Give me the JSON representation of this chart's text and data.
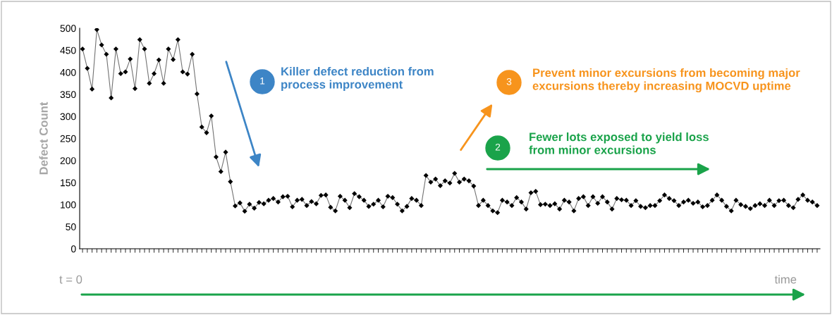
{
  "chart_data": {
    "type": "line",
    "ylabel": "Defect Count",
    "categories": [
      null,
      null,
      null,
      null,
      null,
      null,
      null,
      null,
      null,
      null,
      null,
      null,
      null,
      null,
      null,
      null,
      null,
      null,
      null,
      null,
      null,
      null,
      null,
      null,
      null,
      null,
      null,
      null,
      null,
      null,
      null,
      null,
      null,
      null,
      null,
      null,
      null,
      null,
      null,
      null,
      null,
      null,
      null,
      null,
      null,
      null,
      null,
      null,
      null,
      null,
      null,
      null,
      null,
      null,
      null,
      null,
      null,
      null,
      null,
      null,
      null,
      null,
      null,
      null,
      null,
      null,
      null,
      null,
      null,
      null,
      null,
      null,
      null,
      null,
      null,
      null,
      null,
      null,
      null,
      null,
      null,
      null,
      null,
      null,
      null,
      null,
      null,
      null,
      null,
      null,
      null,
      null,
      null,
      null,
      null,
      null,
      null,
      null,
      null,
      null,
      null,
      null,
      null,
      null,
      null,
      null,
      null,
      null,
      null,
      null,
      null,
      null,
      null,
      null,
      null,
      null,
      null,
      null,
      null,
      null,
      null,
      null,
      null,
      null,
      null,
      null,
      null,
      null,
      null,
      null,
      null,
      null,
      null,
      null,
      null,
      null,
      null,
      null,
      null,
      null,
      null,
      null,
      null,
      null,
      null,
      null,
      null,
      null,
      null,
      null,
      null,
      null,
      null,
      null,
      null
    ],
    "series": [
      {
        "color": "#000000",
        "values": [
          453,
          409,
          362,
          497,
          462,
          441,
          342,
          453,
          397,
          401,
          430,
          363,
          474,
          453,
          375,
          397,
          428,
          375,
          453,
          429,
          474,
          401,
          396,
          441,
          351,
          276,
          263,
          301,
          208,
          175,
          219,
          152,
          97,
          104,
          85,
          101,
          92,
          105,
          102,
          110,
          114,
          106,
          118,
          119,
          95,
          110,
          112,
          98,
          107,
          102,
          121,
          122,
          94,
          86,
          119,
          110,
          93,
          125,
          118,
          110,
          96,
          101,
          110,
          95,
          119,
          116,
          101,
          86,
          96,
          114,
          110,
          98,
          166,
          151,
          158,
          143,
          154,
          149,
          171,
          151,
          158,
          154,
          142,
          98,
          110,
          98,
          86,
          82,
          110,
          106,
          98,
          116,
          106,
          90,
          127,
          130,
          100,
          101,
          98,
          102,
          90,
          110,
          106,
          86,
          114,
          118,
          98,
          118,
          103,
          118,
          106,
          90,
          114,
          111,
          110,
          98,
          109,
          96,
          93,
          98,
          98,
          109,
          122,
          114,
          109,
          98,
          106,
          110,
          103,
          106,
          95,
          98,
          110,
          122,
          110,
          96,
          86,
          110,
          100,
          96,
          91,
          98,
          102,
          98,
          110,
          98,
          109,
          110,
          98,
          93,
          112,
          122,
          110,
          106,
          98
        ]
      }
    ],
    "ylim": [
      0,
      500
    ],
    "yticks": [
      0,
      50,
      100,
      150,
      200,
      250,
      300,
      350,
      400,
      450,
      500
    ],
    "marker": "diamond",
    "line_style": "solid",
    "grid": false,
    "legend": false,
    "tick_labels": "y",
    "annotations": [
      "1",
      "Killer defect reduction from\nprocess improvement",
      "3",
      "Prevent minor excursions from becoming major\nexcursions thereby increasing MOCVD uptime",
      "2",
      "Fewer lots exposed to yield loss\nfrom minor excursions",
      "t = 0",
      "time"
    ]
  }
}
